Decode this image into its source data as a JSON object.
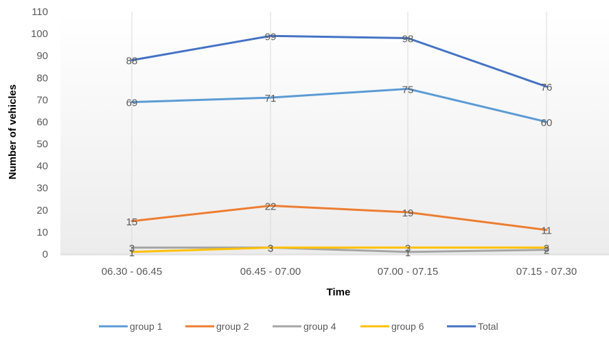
{
  "chart_data": {
    "type": "line",
    "xlabel": "Time",
    "ylabel": "Number of vehicles",
    "ylim": [
      0,
      110
    ],
    "yticks": [
      0,
      10,
      20,
      30,
      40,
      50,
      60,
      70,
      80,
      90,
      100,
      110
    ],
    "categories": [
      "06.30 - 06.45",
      "06.45 - 07.00",
      "07.00 - 07.15",
      "07.15 - 07.30"
    ],
    "grid": "vertical gridlines at categories",
    "legend_position": "bottom",
    "series": [
      {
        "name": "group 1",
        "color": "#5b9bd5",
        "values": [
          69,
          71,
          75,
          60
        ]
      },
      {
        "name": "group 2",
        "color": "#ed7d31",
        "values": [
          15,
          22,
          19,
          11
        ]
      },
      {
        "name": "group 4",
        "color": "#a5a5a5",
        "values": [
          3,
          3,
          1,
          2
        ]
      },
      {
        "name": "group 6",
        "color": "#ffc000",
        "values": [
          1,
          3,
          3,
          3
        ]
      },
      {
        "name": "Total",
        "color": "#4472c4",
        "values": [
          88,
          99,
          98,
          76
        ]
      }
    ]
  }
}
